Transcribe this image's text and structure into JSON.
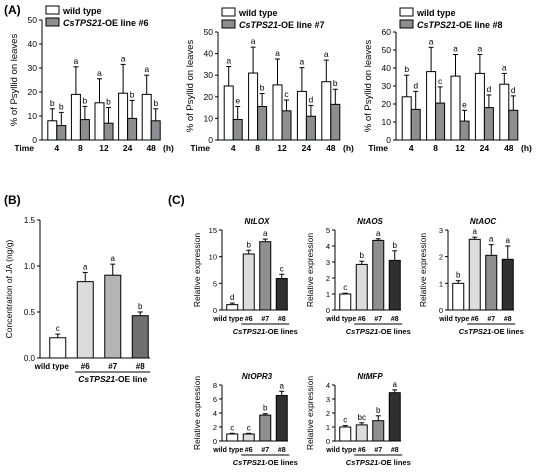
{
  "panel_labels": {
    "A": "(A)",
    "B": "(B)",
    "C": "(C)"
  },
  "chart_data": [
    {
      "id": "A1",
      "type": "bar",
      "ylabel": "% of Psyllid on leaves",
      "ylim": [
        0,
        50
      ],
      "yticks": [
        0,
        10,
        20,
        30,
        40,
        50
      ],
      "x_prefix": "Time",
      "x_unit": "(h)",
      "categories": [
        "4",
        "8",
        "12",
        "24",
        "48"
      ],
      "legend": [
        "wild type",
        "CsTPS21-OE line #6"
      ],
      "series": [
        {
          "name": "wild type",
          "color": "#ffffff",
          "values": [
            8,
            19,
            15.5,
            19.5,
            19
          ],
          "errors": [
            5,
            11.5,
            10,
            12,
            8
          ],
          "letters": [
            "b",
            "a",
            "a",
            "a",
            "a"
          ]
        },
        {
          "name": "CsTPS21-OE line #6",
          "color": "#8c8f92",
          "values": [
            6,
            8.5,
            7,
            9,
            8
          ],
          "errors": [
            5.5,
            5.5,
            6.5,
            7.5,
            5
          ],
          "letters": [
            "b",
            "b",
            "b",
            "b",
            "b"
          ]
        }
      ]
    },
    {
      "id": "A2",
      "type": "bar",
      "ylabel": "% of Psyllid on leaves",
      "ylim": [
        0,
        50
      ],
      "yticks": [
        0,
        10,
        20,
        30,
        40,
        50
      ],
      "x_prefix": "Time",
      "x_unit": "(h)",
      "categories": [
        "4",
        "8",
        "12",
        "24",
        "48"
      ],
      "legend": [
        "wild type",
        "CsTPS21-OE line #7"
      ],
      "series": [
        {
          "name": "wild type",
          "color": "#ffffff",
          "values": [
            25,
            31,
            25.5,
            22.5,
            27
          ],
          "errors": [
            9,
            12,
            12,
            11,
            10
          ],
          "letters": [
            "a",
            "a",
            "a",
            "a",
            "a"
          ]
        },
        {
          "name": "CsTPS21-OE line #7",
          "color": "#8c8f92",
          "values": [
            9.5,
            15.5,
            13.5,
            11,
            16.5
          ],
          "errors": [
            6,
            6,
            5,
            5,
            7
          ],
          "letters": [
            "e",
            "b",
            "c",
            "d",
            "b"
          ]
        }
      ]
    },
    {
      "id": "A3",
      "type": "bar",
      "ylabel": "% of Psyllid on leaves",
      "ylim": [
        0,
        60
      ],
      "yticks": [
        0,
        10,
        20,
        30,
        40,
        50,
        60
      ],
      "x_prefix": "Time",
      "x_unit": "(h)",
      "categories": [
        "4",
        "8",
        "12",
        "24",
        "48"
      ],
      "legend": [
        "wild type",
        "CsTPS21-OE line #8"
      ],
      "series": [
        {
          "name": "wild type",
          "color": "#ffffff",
          "values": [
            24,
            38,
            35.5,
            37,
            31
          ],
          "errors": [
            12,
            13.5,
            12,
            10.5,
            6
          ],
          "letters": [
            "b",
            "a",
            "a",
            "a",
            "a"
          ]
        },
        {
          "name": "CsTPS21-OE line #8",
          "color": "#8c8f92",
          "values": [
            17,
            20.5,
            10.5,
            18,
            16.5
          ],
          "errors": [
            10,
            9,
            6,
            7,
            8
          ],
          "letters": [
            "d",
            "c",
            "e",
            "d",
            "d"
          ]
        }
      ]
    },
    {
      "id": "B",
      "type": "bar",
      "ylabel": "Concentration of JA (ng/g)",
      "ylim": [
        0,
        1.5
      ],
      "yticks": [
        0,
        0.5,
        1.0,
        1.5
      ],
      "categories": [
        "wild type",
        "#6",
        "#7",
        "#8"
      ],
      "group_label": "CsTPS21-OE line",
      "colors": [
        "#ffffff",
        "#dcdcdc",
        "#b4b4b4",
        "#707070"
      ],
      "values": [
        0.22,
        0.83,
        0.9,
        0.46
      ],
      "errors": [
        0.04,
        0.1,
        0.12,
        0.04
      ],
      "letters": [
        "c",
        "a",
        "a",
        "b"
      ]
    },
    {
      "id": "C1",
      "type": "bar",
      "title": "NtLOX",
      "ylabel": "Relative expression",
      "ylim": [
        0,
        15
      ],
      "yticks": [
        0,
        5,
        10,
        15
      ],
      "categories": [
        "wild type",
        "#6",
        "#7",
        "#8"
      ],
      "group_label": "CsTPS21-OE lines",
      "colors": [
        "#ffffff",
        "#dcdcdc",
        "#8f8f8f",
        "#303030"
      ],
      "values": [
        1.0,
        10.5,
        12.8,
        5.9
      ],
      "errors": [
        0.3,
        0.7,
        0.5,
        0.8
      ],
      "letters": [
        "d",
        "b",
        "a",
        "c"
      ]
    },
    {
      "id": "C2",
      "type": "bar",
      "title": "NtAOS",
      "ylabel": "Relative expression",
      "ylim": [
        0,
        5
      ],
      "yticks": [
        0,
        1,
        2,
        3,
        4,
        5
      ],
      "categories": [
        "wild type",
        "#6",
        "#7",
        "#8"
      ],
      "group_label": "CsTPS21-OE lines",
      "colors": [
        "#ffffff",
        "#dcdcdc",
        "#8f8f8f",
        "#303030"
      ],
      "values": [
        1.0,
        2.85,
        4.35,
        3.1
      ],
      "errors": [
        0.05,
        0.2,
        0.1,
        0.6
      ],
      "letters": [
        "c",
        "b",
        "a",
        "b"
      ]
    },
    {
      "id": "C3",
      "type": "bar",
      "title": "NtAOC",
      "ylabel": "Relative expression",
      "ylim": [
        0,
        3
      ],
      "yticks": [
        0,
        1,
        2,
        3
      ],
      "categories": [
        "wild type",
        "#6",
        "#7",
        "#8"
      ],
      "group_label": "CsTPS21-OE lines",
      "colors": [
        "#ffffff",
        "#dcdcdc",
        "#8f8f8f",
        "#303030"
      ],
      "values": [
        1.0,
        2.65,
        2.05,
        1.9
      ],
      "errors": [
        0.1,
        0.08,
        0.4,
        0.5
      ],
      "letters": [
        "b",
        "a",
        "a",
        "a"
      ]
    },
    {
      "id": "C4",
      "type": "bar",
      "title": "NtOPR3",
      "ylabel": "Relative expression",
      "ylim": [
        0,
        8
      ],
      "yticks": [
        0,
        2,
        4,
        6,
        8
      ],
      "categories": [
        "wild type",
        "#6",
        "#7",
        "#8"
      ],
      "group_label": "CsTPS21-OE lines",
      "colors": [
        "#ffffff",
        "#dcdcdc",
        "#8f8f8f",
        "#303030"
      ],
      "values": [
        1.0,
        1.0,
        3.7,
        6.5
      ],
      "errors": [
        0.1,
        0.1,
        0.2,
        0.6
      ],
      "letters": [
        "c",
        "c",
        "b",
        "a"
      ]
    },
    {
      "id": "C5",
      "type": "bar",
      "title": "NtMFP",
      "ylabel": "Relative expression",
      "ylim": [
        0,
        4
      ],
      "yticks": [
        0,
        1,
        2,
        3,
        4
      ],
      "categories": [
        "wild type",
        "#6",
        "#7",
        "#8"
      ],
      "group_label": "CsTPS21-OE lines",
      "colors": [
        "#ffffff",
        "#dcdcdc",
        "#8f8f8f",
        "#303030"
      ],
      "values": [
        1.0,
        1.15,
        1.45,
        3.45
      ],
      "errors": [
        0.1,
        0.15,
        0.35,
        0.2
      ],
      "letters": [
        "c",
        "bc",
        "b",
        "a"
      ]
    }
  ]
}
